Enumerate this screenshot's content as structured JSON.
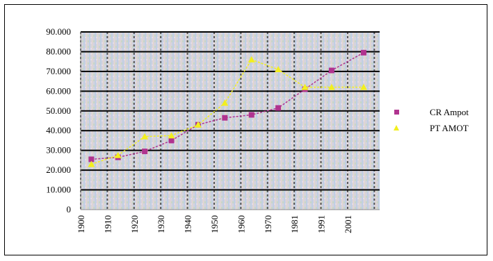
{
  "chart_data": {
    "type": "line",
    "x_ticks": [
      "1900",
      "1910",
      "1920",
      "1930",
      "1940",
      "1950",
      "1960",
      "1970",
      "1981",
      "1991",
      "2001"
    ],
    "y_ticks": [
      "0",
      "10.000",
      "20.000",
      "30.000",
      "40.000",
      "50.000",
      "60.000",
      "70.000",
      "80.000",
      "90.000"
    ],
    "ylim": [
      0,
      90000
    ],
    "xlim": [
      1900,
      2012
    ],
    "grid": true,
    "legend_position": "right",
    "series": [
      {
        "name": "CR Ampot",
        "color": "#b0338f",
        "marker": "square",
        "x": [
          1904,
          1914,
          1924,
          1934,
          1944,
          1954,
          1964,
          1974,
          1984,
          1994,
          2006
        ],
        "y": [
          25500,
          26500,
          29500,
          35000,
          43000,
          46500,
          48000,
          51500,
          61000,
          70500,
          79500
        ]
      },
      {
        "name": "PT AMOT",
        "color": "#f2ef1f",
        "marker": "triangle",
        "x": [
          1904,
          1914,
          1924,
          1934,
          1944,
          1954,
          1964,
          1974,
          1984,
          1994,
          2006
        ],
        "y": [
          23000,
          27500,
          37000,
          37500,
          43000,
          54000,
          76000,
          71000,
          62000,
          62000,
          62000
        ]
      }
    ]
  }
}
